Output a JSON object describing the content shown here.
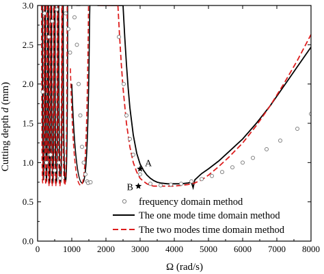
{
  "chart_data": {
    "type": "line",
    "xlabel": "Ω (rad/s)",
    "ylabel_text": "Cutting depth ",
    "ylabel_var": "d",
    "ylabel_unit": " (mm)",
    "xlim": [
      0,
      8000
    ],
    "ylim": [
      0,
      3.0
    ],
    "x_ticks": [
      "0",
      "1000",
      "2000",
      "3000",
      "4000",
      "5000",
      "6000",
      "7000",
      "8000"
    ],
    "y_ticks": [
      "0.0",
      "0.5",
      "1.0",
      "1.5",
      "2.0",
      "2.5",
      "3.0"
    ],
    "legend_position": "lower-right",
    "series": [
      {
        "name": "frequency domain method",
        "style": "circle-markers",
        "color": "#808080",
        "x": [
          150,
          200,
          260,
          330,
          380,
          430,
          500,
          560,
          620,
          660,
          820,
          900,
          950,
          1080,
          1150,
          1200,
          1250,
          1300,
          1350,
          1400,
          1450,
          1480,
          1550,
          2380,
          2520,
          2600,
          2700,
          2800,
          3000,
          3300,
          3600,
          3900,
          4200,
          4500,
          4800,
          5100,
          5400,
          5700,
          6000,
          6300,
          6700,
          7100,
          7600,
          8000
        ],
        "y": [
          1.9,
          2.9,
          1.0,
          2.6,
          1.1,
          2.8,
          0.9,
          2.95,
          1.0,
          0.8,
          2.9,
          2.7,
          2.4,
          2.85,
          2.5,
          2.0,
          1.6,
          1.2,
          1.0,
          0.85,
          0.76,
          0.74,
          0.75,
          2.6,
          2.0,
          1.6,
          1.3,
          1.1,
          0.85,
          0.73,
          0.71,
          0.72,
          0.73,
          0.76,
          0.79,
          0.83,
          0.88,
          0.94,
          1.0,
          1.06,
          1.17,
          1.28,
          1.43,
          1.62
        ]
      },
      {
        "name": "The one  mode time domain method",
        "style": "solid",
        "color": "#000000",
        "x": [
          2500,
          2550,
          2600,
          2650,
          2700,
          2800,
          2900,
          3000,
          3100,
          3200,
          3300,
          3400,
          3500,
          3600,
          3800,
          4000,
          4200,
          4400,
          4500,
          4550,
          4600,
          4800,
          5000,
          5300,
          5600,
          6000,
          6400,
          6800,
          7200,
          7600,
          8000
        ],
        "y": [
          3.0,
          2.6,
          2.25,
          1.95,
          1.7,
          1.35,
          1.12,
          0.98,
          0.9,
          0.84,
          0.8,
          0.77,
          0.75,
          0.74,
          0.73,
          0.73,
          0.73,
          0.74,
          0.75,
          0.68,
          0.78,
          0.86,
          0.92,
          1.02,
          1.14,
          1.3,
          1.5,
          1.72,
          1.97,
          2.22,
          2.47
        ]
      },
      {
        "name": "The two modes time domain method",
        "style": "dashed",
        "color": "#dd1c1c",
        "x": [
          2350,
          2400,
          2450,
          2500,
          2600,
          2700,
          2800,
          2900,
          3000,
          3100,
          3200,
          3300,
          3400,
          3500,
          3600,
          3800,
          4000,
          4200,
          4400,
          4600,
          4800,
          5000,
          5300,
          5600,
          6000,
          6400,
          6800,
          7200,
          7600,
          8000
        ],
        "y": [
          3.0,
          2.6,
          2.25,
          1.95,
          1.5,
          1.2,
          1.0,
          0.88,
          0.8,
          0.76,
          0.73,
          0.71,
          0.7,
          0.7,
          0.7,
          0.7,
          0.7,
          0.71,
          0.72,
          0.74,
          0.78,
          0.84,
          0.95,
          1.07,
          1.25,
          1.47,
          1.72,
          2.0,
          2.3,
          2.63
        ]
      }
    ],
    "annotations": [
      {
        "text": "A",
        "x": 3000,
        "y": 0.92
      },
      {
        "text": "B",
        "x": 2950,
        "y": 0.7
      }
    ]
  }
}
